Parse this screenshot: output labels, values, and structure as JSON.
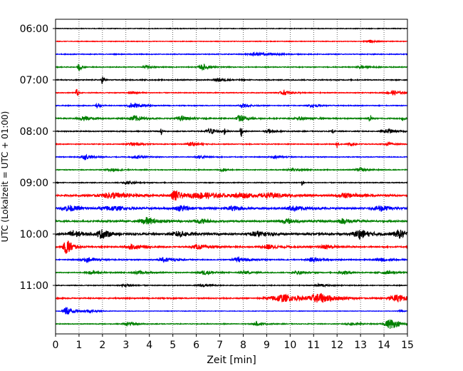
{
  "chart_data": {
    "type": "line",
    "subtype": "seismic-helicorder",
    "xlabel": "Zeit  [min]",
    "ylabel": "UTC (Lokalzeit = UTC + 01:00)",
    "xlim": [
      0,
      15
    ],
    "x_ticks": [
      "0",
      "1",
      "2",
      "3",
      "4",
      "5",
      "6",
      "7",
      "8",
      "9",
      "10",
      "11",
      "12",
      "13",
      "14",
      "15"
    ],
    "y_ticks": [
      "06:00",
      "07:00",
      "08:00",
      "09:00",
      "10:00",
      "11:00"
    ],
    "y_tick_rows": [
      0,
      4,
      8,
      12,
      16,
      20
    ],
    "row_start_times": [
      "06:00",
      "06:15",
      "06:30",
      "06:45",
      "07:00",
      "07:15",
      "07:30",
      "07:45",
      "08:00",
      "08:15",
      "08:30",
      "08:45",
      "09:00",
      "09:15",
      "09:30",
      "09:45",
      "10:00",
      "10:15",
      "10:30",
      "10:45",
      "11:00",
      "11:15",
      "11:30",
      "11:45"
    ],
    "grid": "vertical-dotted",
    "colors": [
      "#000000",
      "#ff0000",
      "#0000ff",
      "#008000"
    ],
    "trace_noise": [
      0.4,
      0.4,
      0.5,
      0.5,
      0.6,
      0.5,
      0.5,
      0.7,
      0.6,
      0.5,
      0.5,
      0.5,
      0.5,
      1.0,
      1.0,
      1.0,
      1.2,
      0.8,
      0.6,
      0.5,
      0.5,
      0.7,
      0.3,
      0.5
    ],
    "events": [
      [],
      [
        [
          13.4,
          0.25,
          2
        ]
      ],
      [
        [
          8.7,
          0.6,
          2
        ]
      ],
      [
        [
          1.0,
          0.1,
          6
        ],
        [
          6.3,
          0.25,
          4
        ],
        [
          3.9,
          0.2,
          2
        ],
        [
          13.1,
          0.3,
          2
        ]
      ],
      [
        [
          2.0,
          0.06,
          6
        ],
        [
          7.0,
          0.3,
          2
        ]
      ],
      [
        [
          0.9,
          0.06,
          8
        ],
        [
          9.8,
          0.3,
          3
        ],
        [
          14.4,
          0.35,
          3
        ],
        [
          3.3,
          0.2,
          2
        ]
      ],
      [
        [
          1.8,
          0.1,
          4
        ],
        [
          3.3,
          0.3,
          4
        ],
        [
          8.0,
          0.3,
          2
        ],
        [
          11.0,
          0.3,
          2
        ]
      ],
      [
        [
          1.2,
          0.25,
          4
        ],
        [
          3.4,
          0.3,
          4
        ],
        [
          5.4,
          0.3,
          3
        ],
        [
          7.9,
          0.25,
          5
        ],
        [
          10.5,
          0.3,
          2
        ],
        [
          13.4,
          0.06,
          7
        ],
        [
          14.8,
          0.06,
          5
        ]
      ],
      [
        [
          4.5,
          0.03,
          9
        ],
        [
          6.6,
          0.25,
          4
        ],
        [
          7.2,
          0.03,
          6
        ],
        [
          7.9,
          0.05,
          11
        ],
        [
          9.1,
          0.2,
          3
        ],
        [
          11.8,
          0.05,
          3
        ],
        [
          14.2,
          0.3,
          3
        ]
      ],
      [
        [
          3.3,
          0.25,
          3
        ],
        [
          5.8,
          0.25,
          3
        ],
        [
          12.0,
          0.05,
          5
        ],
        [
          12.6,
          0.2,
          2
        ],
        [
          14.2,
          0.2,
          2
        ]
      ],
      [
        [
          1.3,
          0.3,
          3
        ],
        [
          3.5,
          0.3,
          2
        ],
        [
          6.2,
          0.3,
          2
        ],
        [
          9.4,
          0.3,
          2
        ]
      ],
      [
        [
          2.4,
          0.3,
          2
        ],
        [
          7.1,
          0.1,
          4
        ],
        [
          10.1,
          0.3,
          2
        ],
        [
          13.0,
          0.3,
          2
        ]
      ],
      [
        [
          10.5,
          0.03,
          7
        ],
        [
          3.1,
          0.3,
          2
        ]
      ],
      [
        [
          2.5,
          0.8,
          4
        ],
        [
          5.1,
          0.2,
          8
        ],
        [
          6.3,
          0.8,
          4
        ],
        [
          8.0,
          0.5,
          3
        ],
        [
          9.3,
          0.6,
          3
        ],
        [
          12.4,
          0.5,
          3
        ]
      ],
      [
        [
          0.6,
          0.4,
          4
        ],
        [
          2.4,
          0.6,
          3
        ],
        [
          5.4,
          0.4,
          4
        ],
        [
          7.6,
          0.4,
          3
        ],
        [
          10.2,
          0.5,
          3
        ],
        [
          13.9,
          0.4,
          4
        ]
      ],
      [
        [
          3.9,
          0.4,
          5
        ],
        [
          6.2,
          0.4,
          3
        ],
        [
          9.9,
          0.4,
          3
        ],
        [
          12.3,
          0.4,
          3
        ]
      ],
      [
        [
          0.8,
          0.3,
          5
        ],
        [
          2.0,
          0.3,
          6
        ],
        [
          5.3,
          0.4,
          4
        ],
        [
          8.6,
          0.4,
          4
        ],
        [
          13.0,
          0.4,
          6
        ],
        [
          14.7,
          0.4,
          5
        ]
      ],
      [
        [
          0.5,
          0.2,
          12
        ],
        [
          3.3,
          0.4,
          3
        ],
        [
          6.1,
          0.4,
          3
        ],
        [
          9.1,
          0.4,
          3
        ],
        [
          11.6,
          0.4,
          3
        ]
      ],
      [
        [
          1.4,
          0.4,
          3
        ],
        [
          4.7,
          0.4,
          3
        ],
        [
          7.9,
          0.4,
          3
        ],
        [
          11.0,
          0.4,
          3
        ],
        [
          13.9,
          0.4,
          2
        ]
      ],
      [
        [
          1.6,
          0.4,
          2
        ],
        [
          3.6,
          0.4,
          2
        ],
        [
          6.4,
          0.4,
          3
        ],
        [
          8.1,
          0.4,
          2
        ],
        [
          10.4,
          0.4,
          2
        ],
        [
          12.3,
          0.4,
          2
        ],
        [
          14.1,
          0.4,
          2
        ]
      ],
      [
        [
          3.0,
          0.3,
          2
        ],
        [
          6.3,
          0.3,
          2
        ],
        [
          11.3,
          0.3,
          2
        ]
      ],
      [
        [
          9.7,
          0.8,
          5
        ],
        [
          11.3,
          0.6,
          6
        ],
        [
          14.6,
          0.5,
          5
        ]
      ],
      [
        [
          0.5,
          0.25,
          6
        ],
        [
          1.4,
          0.3,
          2
        ],
        [
          14.7,
          0.1,
          2
        ]
      ],
      [
        [
          14.3,
          0.35,
          7
        ],
        [
          3.1,
          0.3,
          2
        ],
        [
          8.6,
          0.3,
          2
        ],
        [
          12.6,
          0.3,
          2
        ]
      ]
    ]
  }
}
